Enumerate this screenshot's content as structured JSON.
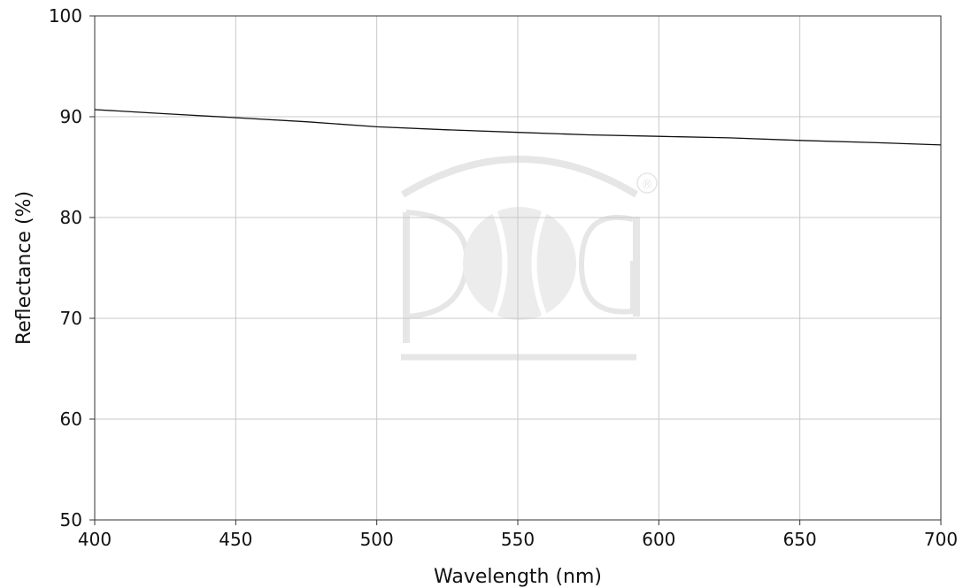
{
  "chart_data": {
    "type": "line",
    "title": "",
    "xlabel": "Wavelength (nm)",
    "ylabel": "Reflectance (%)",
    "xlim": [
      400,
      700
    ],
    "ylim": [
      50,
      100
    ],
    "xticks": [
      400,
      450,
      500,
      550,
      600,
      650,
      700
    ],
    "yticks": [
      50,
      60,
      70,
      80,
      90,
      100
    ],
    "grid": true,
    "series": [
      {
        "x": [
          400,
          425,
          450,
          475,
          500,
          525,
          550,
          575,
          600,
          625,
          650,
          675,
          700
        ],
        "y": [
          90.7,
          90.3,
          89.9,
          89.5,
          89.0,
          88.7,
          88.45,
          88.2,
          88.05,
          87.9,
          87.65,
          87.45,
          87.2
        ]
      }
    ],
    "colors": {
      "line": "#111111",
      "grid": "#c8c8c8",
      "watermark": "#e6e6e6"
    },
    "watermark": {
      "text": "POG",
      "registered_mark": "®"
    }
  }
}
